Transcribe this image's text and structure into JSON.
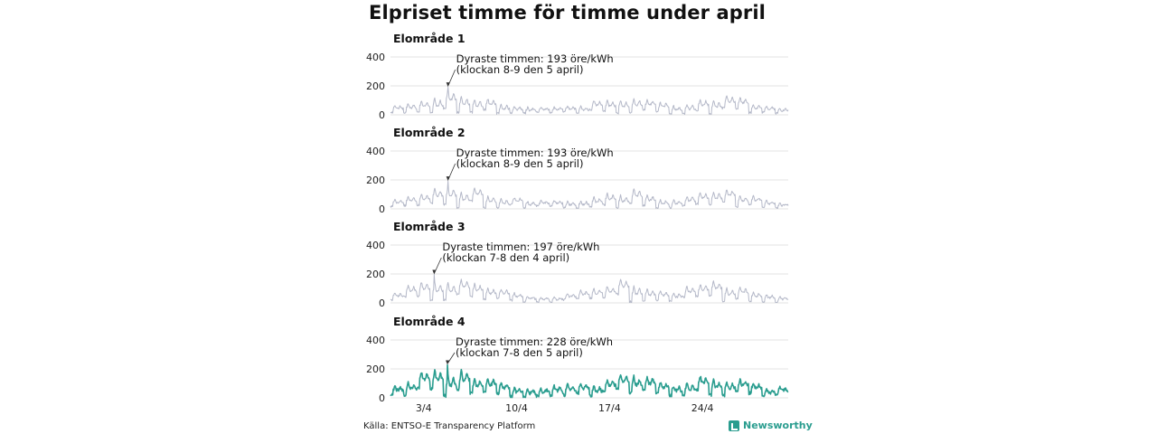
{
  "title": "Elpriset timme för timme under april",
  "source": "Källa: ENTSO-E Transparency Platform",
  "brand": "Newsworthy",
  "colors": {
    "muted": "#b4b8c8",
    "highlight": "#2a9d8f",
    "grid": "#e3e3e3"
  },
  "chart_data": {
    "type": "line",
    "x_ticks": [
      "3/4",
      "10/4",
      "17/4",
      "24/4"
    ],
    "ylim": [
      0,
      400
    ],
    "y_ticks": [
      0,
      200,
      400
    ],
    "panels": [
      {
        "name": "Elområde 1",
        "highlight": false,
        "annotation": [
          "Dyraste timmen: 193 öre/kWh",
          "(klockan 8-9 den 5 april)"
        ],
        "peak": {
          "day": 5,
          "hour": 8,
          "value": 193
        },
        "daily": [
          60,
          75,
          95,
          115,
          140,
          125,
          100,
          85,
          70,
          55,
          45,
          40,
          40,
          45,
          55,
          70,
          85,
          105,
          110,
          80,
          65,
          60,
          75,
          90,
          105,
          95,
          85,
          65,
          50,
          40
        ]
      },
      {
        "name": "Elområde 2",
        "highlight": false,
        "annotation": [
          "Dyraste timmen: 193 öre/kWh",
          "(klockan 8-9 den 5 april)"
        ],
        "peak": {
          "day": 5,
          "hour": 8,
          "value": 193
        },
        "daily": [
          55,
          70,
          90,
          110,
          135,
          120,
          100,
          85,
          70,
          55,
          45,
          40,
          40,
          45,
          55,
          70,
          85,
          100,
          110,
          80,
          65,
          60,
          75,
          90,
          100,
          95,
          85,
          65,
          50,
          40
        ]
      },
      {
        "name": "Elområde 3",
        "highlight": false,
        "annotation": [
          "Dyraste timmen: 197 öre/kWh",
          "(klockan 7-8 den 4 april)"
        ],
        "peak": {
          "day": 4,
          "hour": 7,
          "value": 197
        },
        "daily": [
          60,
          85,
          110,
          135,
          130,
          115,
          100,
          85,
          70,
          55,
          45,
          42,
          42,
          48,
          58,
          72,
          90,
          115,
          120,
          90,
          72,
          65,
          80,
          95,
          110,
          105,
          90,
          70,
          55,
          45
        ]
      },
      {
        "name": "Elområde 4",
        "highlight": true,
        "annotation": [
          "Dyraste timmen: 228 öre/kWh",
          "(klockan 7-8 den 5 april)"
        ],
        "peak": {
          "day": 5,
          "hour": 7,
          "value": 228
        },
        "daily": [
          65,
          95,
          125,
          145,
          160,
          140,
          115,
          95,
          80,
          65,
          55,
          60,
          75,
          85,
          70,
          75,
          95,
          120,
          125,
          100,
          80,
          75,
          90,
          105,
          115,
          110,
          95,
          80,
          65,
          55
        ]
      }
    ]
  }
}
